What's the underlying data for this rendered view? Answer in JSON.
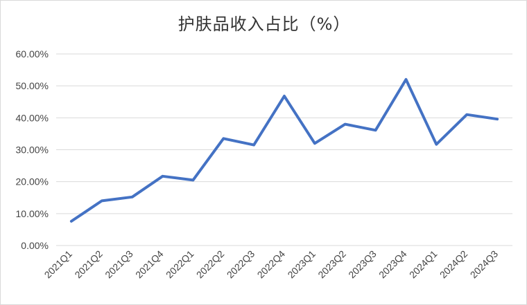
{
  "chart_data": {
    "type": "line",
    "title": "护肤品收入占比（%）",
    "xlabel": "",
    "ylabel": "",
    "categories": [
      "2021Q1",
      "2021Q2",
      "2021Q3",
      "2021Q4",
      "2022Q1",
      "2022Q2",
      "2022Q3",
      "2022Q4",
      "2023Q1",
      "2023Q2",
      "2023Q3",
      "2023Q4",
      "2024Q1",
      "2024Q2",
      "2024Q3"
    ],
    "series": [
      {
        "values": [
          7.6,
          14.0,
          15.2,
          21.7,
          20.5,
          33.5,
          31.5,
          46.8,
          32.0,
          38.0,
          36.1,
          52.0,
          31.7,
          41.0,
          39.6
        ]
      }
    ],
    "ylim": [
      0,
      60
    ],
    "yticks": [
      "0.00%",
      "10.00%",
      "20.00%",
      "30.00%",
      "40.00%",
      "50.00%",
      "60.00%"
    ],
    "grid": true,
    "legend": "none",
    "line_color": "#4472c4"
  }
}
